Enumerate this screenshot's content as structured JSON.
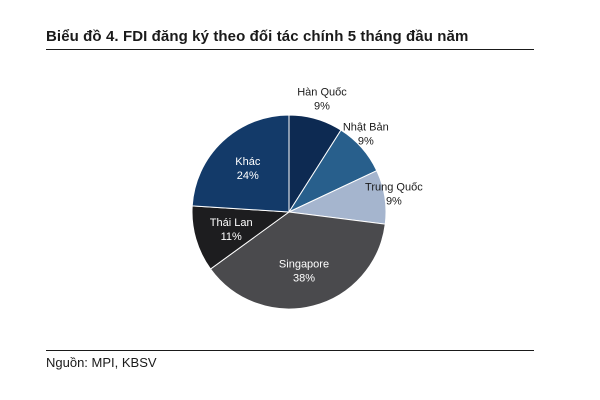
{
  "chart_data": {
    "type": "pie",
    "title": "Biểu đồ 4. FDI đăng ký theo đối tác chính 5 tháng đầu năm",
    "source": "Nguồn: MPI, KBSV",
    "slices": [
      {
        "label": "Hàn Quốc",
        "value": 9,
        "value_label": "9%",
        "color": "#0d2a52",
        "label_pos": "outside",
        "text_color": "#1a1a1a"
      },
      {
        "label": "Nhật Bản",
        "value": 9,
        "value_label": "9%",
        "color": "#285f8c",
        "label_pos": "outside",
        "text_color": "#1a1a1a"
      },
      {
        "label": "Trung Quốc",
        "value": 9,
        "value_label": "9%",
        "color": "#a5b5ce",
        "label_pos": "outside",
        "text_color": "#1a1a1a"
      },
      {
        "label": "Singapore",
        "value": 38,
        "value_label": "38%",
        "color": "#4a4a4d",
        "label_pos": "inside",
        "text_color": "#ffffff"
      },
      {
        "label": "Thái Lan",
        "value": 11,
        "value_label": "11%",
        "color": "#1d1d1f",
        "label_pos": "inside",
        "text_color": "#ffffff"
      },
      {
        "label": "Khác",
        "value": 24,
        "value_label": "24%",
        "color": "#133a69",
        "label_pos": "inside",
        "text_color": "#ffffff"
      }
    ],
    "start": "top",
    "direction": "clockwise",
    "legend": "none"
  }
}
